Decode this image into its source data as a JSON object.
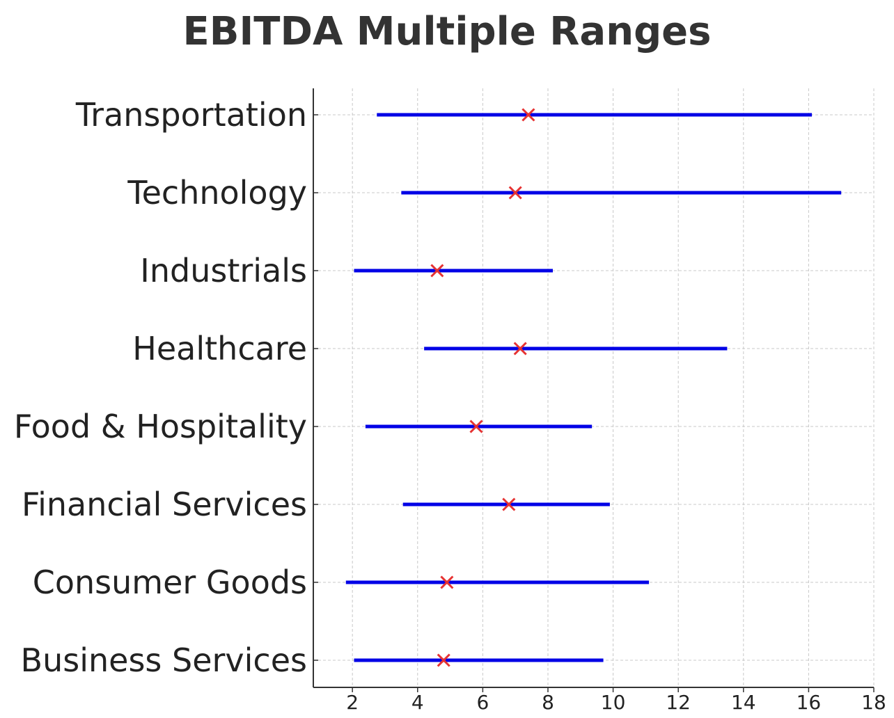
{
  "chart_data": {
    "type": "range",
    "title": "EBITDA Multiple Ranges",
    "xlabel": "",
    "ylabel": "",
    "xlim": [
      0.8,
      18
    ],
    "xticks": [
      2,
      4,
      6,
      8,
      10,
      12,
      14,
      16,
      18
    ],
    "grid": true,
    "colors": {
      "range": "#0000e6",
      "marker": "#e63232"
    },
    "categories": [
      "Transportation",
      "Technology",
      "Industrials",
      "Healthcare",
      "Food & Hospitality",
      "Financial Services",
      "Consumer Goods",
      "Business Services"
    ],
    "low": [
      2.75,
      3.5,
      2.05,
      4.2,
      2.4,
      3.55,
      1.8,
      2.05
    ],
    "high": [
      16.1,
      17.0,
      8.15,
      13.5,
      9.35,
      9.9,
      11.1,
      9.7
    ],
    "marker": [
      7.4,
      7.0,
      4.6,
      7.15,
      5.8,
      6.8,
      4.9,
      4.8
    ]
  }
}
